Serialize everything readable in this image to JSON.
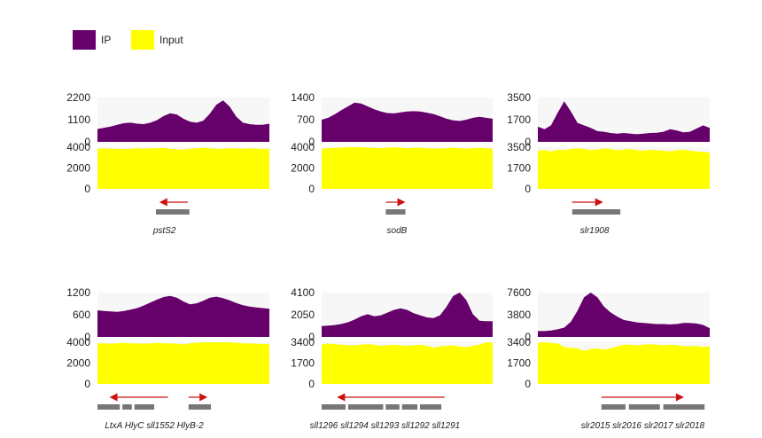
{
  "colors": {
    "ip": "#66006a",
    "input": "#ffff00",
    "background": "#f7f7f7",
    "gene": "#777777",
    "arrow": "#cc1111"
  },
  "legend": [
    {
      "label": "IP",
      "color": "#66006a"
    },
    {
      "label": "Input",
      "color": "#ffff00"
    }
  ],
  "chart_data": [
    {
      "type": "area",
      "gene_label": "pstS2",
      "ip": {
        "ylim": [
          0,
          2200
        ],
        "ticks": [
          "2200",
          "1100",
          "0"
        ],
        "values": [
          640,
          700,
          760,
          850,
          930,
          950,
          900,
          880,
          950,
          1080,
          1280,
          1420,
          1360,
          1150,
          1000,
          950,
          1050,
          1400,
          1850,
          2060,
          1750,
          1250,
          950,
          880,
          850,
          850,
          900
        ]
      },
      "input": {
        "ylim": [
          0,
          4000
        ],
        "ticks": [
          "4000",
          "2000",
          "0"
        ],
        "values": [
          3850,
          3900,
          3850,
          3850,
          3800,
          3850,
          3900,
          3850,
          3900,
          3900,
          3950,
          3850,
          3800,
          3750,
          3850,
          3900,
          3950,
          3900,
          3850,
          3850,
          3900,
          3900,
          3850,
          3900,
          3850,
          3850,
          3800
        ]
      },
      "arrow": {
        "direction": "left",
        "from": 0.525,
        "to": 0.36
      },
      "gene_bars": [
        [
          0.34,
          0.535
        ]
      ]
    },
    {
      "type": "area",
      "gene_label": "sodB",
      "ip": {
        "ylim": [
          0,
          1400
        ],
        "ticks": [
          "1400",
          "700",
          "0"
        ],
        "values": [
          700,
          760,
          870,
          1000,
          1120,
          1240,
          1210,
          1120,
          1030,
          960,
          910,
          900,
          930,
          960,
          970,
          960,
          920,
          880,
          810,
          730,
          680,
          660,
          700,
          760,
          790,
          760,
          730
        ]
      },
      "input": {
        "ylim": [
          0,
          4000
        ],
        "ticks": [
          "4000",
          "2000",
          "0"
        ],
        "values": [
          3850,
          3900,
          3950,
          3950,
          4000,
          4000,
          4000,
          3950,
          3950,
          3900,
          3950,
          4000,
          3950,
          3900,
          3950,
          3950,
          3900,
          3850,
          3900,
          3900,
          3950,
          3900,
          3850,
          3900,
          3950,
          3900,
          3850
        ]
      },
      "arrow": {
        "direction": "right",
        "from": 0.375,
        "to": 0.49
      },
      "gene_bars": [
        [
          0.375,
          0.49
        ]
      ]
    },
    {
      "type": "area",
      "gene_label": "slr1908",
      "ip": {
        "ylim": [
          0,
          3500
        ],
        "ticks": [
          "3500",
          "1700",
          "0"
        ],
        "values": [
          1200,
          1000,
          1300,
          2300,
          3200,
          2400,
          1500,
          1300,
          1100,
          850,
          800,
          700,
          650,
          700,
          650,
          600,
          650,
          700,
          720,
          800,
          1000,
          900,
          750,
          800,
          1050,
          1300,
          1100
        ]
      },
      "input": {
        "ylim": [
          0,
          3500
        ],
        "ticks": [
          "3500",
          "1700",
          "0"
        ],
        "values": [
          3200,
          3250,
          3150,
          3300,
          3250,
          3350,
          3400,
          3350,
          3250,
          3300,
          3400,
          3350,
          3250,
          3300,
          3350,
          3250,
          3200,
          3300,
          3250,
          3200,
          3150,
          3250,
          3300,
          3200,
          3150,
          3100,
          3050
        ]
      },
      "arrow": {
        "direction": "right",
        "from": 0.2,
        "to": 0.38
      },
      "gene_bars": [
        [
          0.2,
          0.48
        ]
      ]
    },
    {
      "type": "area",
      "gene_label": "LtxA HlyC sll1552       HlyB-2",
      "ip": {
        "ylim": [
          0,
          1200
        ],
        "ticks": [
          "1200",
          "600",
          "0"
        ],
        "values": [
          720,
          700,
          690,
          680,
          700,
          740,
          780,
          850,
          930,
          1010,
          1080,
          1110,
          1060,
          960,
          880,
          910,
          980,
          1060,
          1090,
          1050,
          990,
          920,
          860,
          820,
          800,
          780,
          760
        ]
      },
      "input": {
        "ylim": [
          0,
          4000
        ],
        "ticks": [
          "4000",
          "2000",
          "0"
        ],
        "values": [
          3900,
          3900,
          3850,
          3900,
          3950,
          3900,
          3900,
          3850,
          3900,
          3950,
          3900,
          3900,
          3850,
          3800,
          3900,
          3950,
          4000,
          4100,
          4150,
          4100,
          4000,
          3950,
          3900,
          3900,
          3850,
          3850,
          3800
        ]
      },
      "arrow": [
        {
          "direction": "left",
          "from": 0.41,
          "to": 0.07
        },
        {
          "direction": "right",
          "from": 0.53,
          "to": 0.64
        }
      ],
      "gene_bars": [
        [
          0.0,
          0.13
        ],
        [
          0.145,
          0.2
        ],
        [
          0.215,
          0.33
        ],
        [
          0.53,
          0.66
        ]
      ]
    },
    {
      "type": "area",
      "gene_label": "sll1296 sll1294 sll1293 sll1292 sll1291",
      "ip": {
        "ylim": [
          0,
          4100
        ],
        "ticks": [
          "4100",
          "2050",
          "0"
        ],
        "values": [
          1000,
          1050,
          1100,
          1200,
          1350,
          1600,
          1900,
          2100,
          1900,
          2000,
          2250,
          2500,
          2650,
          2500,
          2200,
          2000,
          1800,
          1750,
          2000,
          2800,
          3800,
          4300,
          3400,
          2100,
          1500,
          1450,
          1450
        ]
      },
      "input": {
        "ylim": [
          0,
          3400
        ],
        "ticks": [
          "3400",
          "1700",
          "0"
        ],
        "values": [
          3200,
          3300,
          3250,
          3200,
          3150,
          3150,
          3200,
          3250,
          3200,
          3100,
          3150,
          3200,
          3150,
          3100,
          3150,
          3200,
          3100,
          2950,
          3050,
          3100,
          3150,
          3050,
          3000,
          3100,
          3200,
          3400,
          3500
        ]
      },
      "arrow": {
        "direction": "left",
        "from": 0.72,
        "to": 0.09
      },
      "gene_bars": [
        [
          0.0,
          0.14
        ],
        [
          0.155,
          0.36
        ],
        [
          0.375,
          0.455
        ],
        [
          0.47,
          0.56
        ],
        [
          0.575,
          0.7
        ]
      ]
    },
    {
      "type": "area",
      "gene_label": "slr2015 slr2016 slr2017 slr2018",
      "ip": {
        "ylim": [
          0,
          7600
        ],
        "ticks": [
          "7600",
          "3800",
          "0"
        ],
        "values": [
          1000,
          1000,
          1100,
          1300,
          1600,
          2600,
          4500,
          6800,
          8000,
          6800,
          5200,
          4200,
          3500,
          2900,
          2700,
          2500,
          2400,
          2300,
          2200,
          2200,
          2150,
          2200,
          2400,
          2400,
          2300,
          2050,
          1500
        ]
      },
      "input": {
        "ylim": [
          0,
          3400
        ],
        "ticks": [
          "3400",
          "1700",
          "0"
        ],
        "values": [
          3350,
          3400,
          3350,
          3300,
          3000,
          2950,
          2900,
          2700,
          2850,
          2900,
          2800,
          2900,
          3050,
          3200,
          3200,
          3150,
          3200,
          3250,
          3200,
          3150,
          3200,
          3150,
          3100,
          3050,
          3100,
          3000,
          3050
        ]
      },
      "arrow": {
        "direction": "right",
        "from": 0.37,
        "to": 0.85
      },
      "gene_bars": [
        [
          0.37,
          0.51
        ],
        [
          0.53,
          0.71
        ],
        [
          0.73,
          0.97
        ]
      ]
    }
  ]
}
